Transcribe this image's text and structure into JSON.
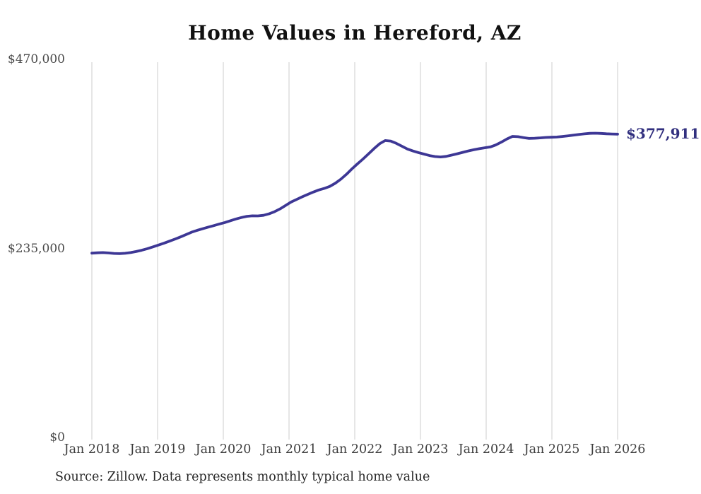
{
  "page": {
    "title": "Home Values in Hereford, AZ",
    "latest_value_label": "$377,911",
    "source_note": "Source: Zillow. Data represents monthly typical home value"
  },
  "colors": {
    "line": "#3d3795",
    "latest_label": "#32307f",
    "grid": "#cccccc",
    "axis_text": "#4a4a4a",
    "title_text": "#111111",
    "source_text": "#262626"
  },
  "chart_data": {
    "type": "line",
    "title": "Home Values in Hereford, AZ",
    "unit": "USD",
    "cadence": "monthly",
    "x_start": "Jan 2018",
    "x_end": "Jan 2026",
    "x_tick_labels": [
      "Jan 2018",
      "Jan 2019",
      "Jan 2020",
      "Jan 2021",
      "Jan 2022",
      "Jan 2023",
      "Jan 2024",
      "Jan 2025",
      "Jan 2026"
    ],
    "y_ticks": [
      {
        "label": "$0",
        "value": 0
      },
      {
        "label": "$235,000",
        "value": 235000
      },
      {
        "label": "$470,000",
        "value": 470000
      }
    ],
    "ylim": [
      0,
      470000
    ],
    "grid": "vertical-only",
    "legend": "none",
    "end_annotation": "$377,911",
    "series": [
      {
        "name": "Typical home value",
        "values": [
          230000,
          230400,
          230700,
          230300,
          229600,
          229400,
          229800,
          230700,
          232000,
          233600,
          235500,
          237700,
          240000,
          242300,
          244800,
          247400,
          250100,
          253000,
          256000,
          258300,
          260300,
          262300,
          264200,
          266100,
          268000,
          270200,
          272400,
          274300,
          275800,
          276400,
          276300,
          277000,
          278800,
          281500,
          285000,
          289200,
          293500,
          296800,
          300000,
          303000,
          305900,
          308500,
          310500,
          313000,
          317000,
          322000,
          328000,
          334800,
          341000,
          347000,
          353500,
          360000,
          366000,
          369900,
          369300,
          366500,
          363000,
          359500,
          357000,
          355000,
          353200,
          351300,
          350100,
          349600,
          350300,
          351800,
          353500,
          355300,
          357000,
          358500,
          359800,
          361000,
          362000,
          364500,
          368000,
          372000,
          375100,
          374800,
          373500,
          372600,
          372800,
          373300,
          373800,
          374100,
          374300,
          375000,
          375800,
          376600,
          377500,
          378300,
          378900,
          379100,
          378800,
          378400,
          378100,
          377911
        ],
        "last_value": 377911
      }
    ]
  }
}
